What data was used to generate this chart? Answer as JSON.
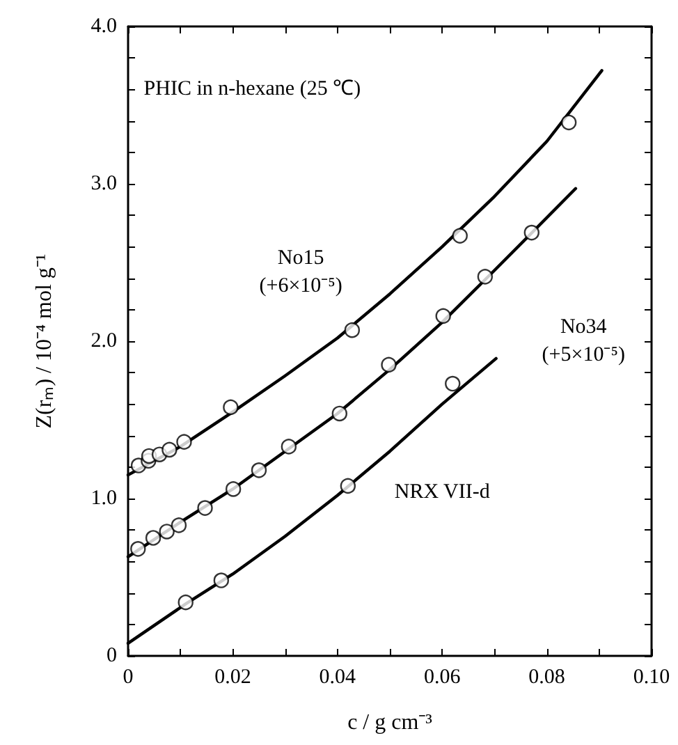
{
  "chart_data": {
    "type": "scatter",
    "xlabel": "c / g cm⁻³",
    "ylabel": "Z(rₘ) / 10⁻⁴ mol g⁻¹",
    "xlim": [
      0,
      0.1
    ],
    "ylim": [
      0,
      4.0
    ],
    "xticks": [
      0,
      {
        "value": 0.01,
        "label": null
      },
      0.02,
      {
        "value": 0.03,
        "label": null
      },
      0.04,
      {
        "value": 0.05,
        "label": null
      },
      0.06,
      {
        "value": 0.07,
        "label": null
      },
      0.08,
      {
        "value": 0.09,
        "label": null
      },
      {
        "value": 0.1,
        "label": "0.10"
      }
    ],
    "yticks": [
      0,
      {
        "value": 0.2,
        "label": null
      },
      {
        "value": 0.4,
        "label": null
      },
      {
        "value": 0.6,
        "label": null
      },
      {
        "value": 0.8,
        "label": null
      },
      {
        "value": 1,
        "label": "1.0"
      },
      {
        "value": 1.2,
        "label": null
      },
      {
        "value": 1.4,
        "label": null
      },
      {
        "value": 1.6,
        "label": null
      },
      {
        "value": 1.8,
        "label": null
      },
      {
        "value": 2,
        "label": "2.0"
      },
      {
        "value": 2.2,
        "label": null
      },
      {
        "value": 2.4,
        "label": null
      },
      {
        "value": 2.6,
        "label": null
      },
      {
        "value": 2.8,
        "label": null
      },
      {
        "value": 3,
        "label": "3.0"
      },
      {
        "value": 3.2,
        "label": null
      },
      {
        "value": 3.4,
        "label": null
      },
      {
        "value": 3.6,
        "label": null
      },
      {
        "value": 3.8,
        "label": null
      },
      {
        "value": 4,
        "label": "4.0"
      }
    ],
    "grid": false,
    "marker": "circle",
    "series": [
      {
        "color": "#000000",
        "x": [
          0.002,
          0.0039,
          0.004,
          0.006,
          0.0079,
          0.0107,
          0.0196,
          0.0428,
          0.0634,
          0.0842
        ],
        "values": [
          1.21,
          1.24,
          1.27,
          1.28,
          1.31,
          1.36,
          1.58,
          2.07,
          2.67,
          3.39
        ]
      },
      {
        "color": "#000000",
        "x": [
          0.0019,
          0.0048,
          0.0074,
          0.0097,
          0.0147,
          0.0201,
          0.025,
          0.0307,
          0.0404,
          0.0498,
          0.0602,
          0.0682,
          0.0771
        ],
        "values": [
          0.68,
          0.75,
          0.79,
          0.83,
          0.94,
          1.06,
          1.18,
          1.33,
          1.54,
          1.85,
          2.16,
          2.41,
          2.69
        ]
      },
      {
        "color": "#000000",
        "x": [
          0.011,
          0.0178,
          0.042,
          0.062
        ],
        "values": [
          0.34,
          0.48,
          1.08,
          1.73
        ]
      },
      {
        "type": "line",
        "color": "#000000",
        "marker": "none",
        "line_style": "solid",
        "x": [
          0,
          0.01,
          0.02,
          0.03,
          0.04,
          0.05,
          0.06,
          0.07,
          0.08,
          0.0905
        ],
        "values": [
          1.15,
          1.33,
          1.55,
          1.78,
          2.02,
          2.3,
          2.6,
          2.92,
          3.27,
          3.72
        ]
      },
      {
        "type": "line",
        "color": "#000000",
        "marker": "none",
        "line_style": "solid",
        "x": [
          0,
          0.01,
          0.02,
          0.03,
          0.04,
          0.05,
          0.06,
          0.07,
          0.0855
        ],
        "values": [
          0.63,
          0.85,
          1.06,
          1.3,
          1.54,
          1.82,
          2.12,
          2.45,
          2.97
        ]
      },
      {
        "type": "line",
        "color": "#000000",
        "marker": "none",
        "line_style": "solid",
        "x": [
          0,
          0.011,
          0.02,
          0.03,
          0.04,
          0.05,
          0.06,
          0.0703
        ],
        "values": [
          0.08,
          0.33,
          0.52,
          0.76,
          1.02,
          1.3,
          1.6,
          1.89
        ]
      }
    ],
    "annotations": [
      "PHIC in n-hexane (25 ℃)",
      "No15\n(+6×10⁻⁵)",
      "No34\n(+5×10⁻⁵)",
      "NRX VII-d"
    ]
  }
}
